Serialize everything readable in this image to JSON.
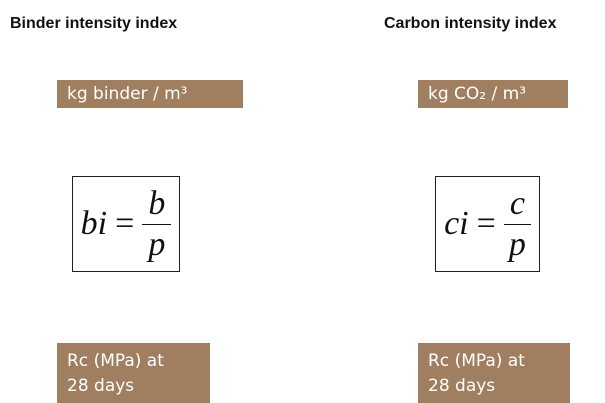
{
  "columns": [
    {
      "title": "Binder intensity index",
      "unit": "kg binder / m³",
      "formula": {
        "lhs": "bi",
        "operator": "=",
        "numerator": "b",
        "denominator": "p"
      },
      "basis": [
        "Rc (MPa) at",
        "28 days"
      ]
    },
    {
      "title": "Carbon intensity index",
      "unit": "kg CO₂ / m³",
      "formula": {
        "lhs": "ci",
        "operator": "=",
        "numerator": "c",
        "denominator": "p"
      },
      "basis": [
        "Rc (MPa) at",
        "28 days"
      ]
    }
  ]
}
